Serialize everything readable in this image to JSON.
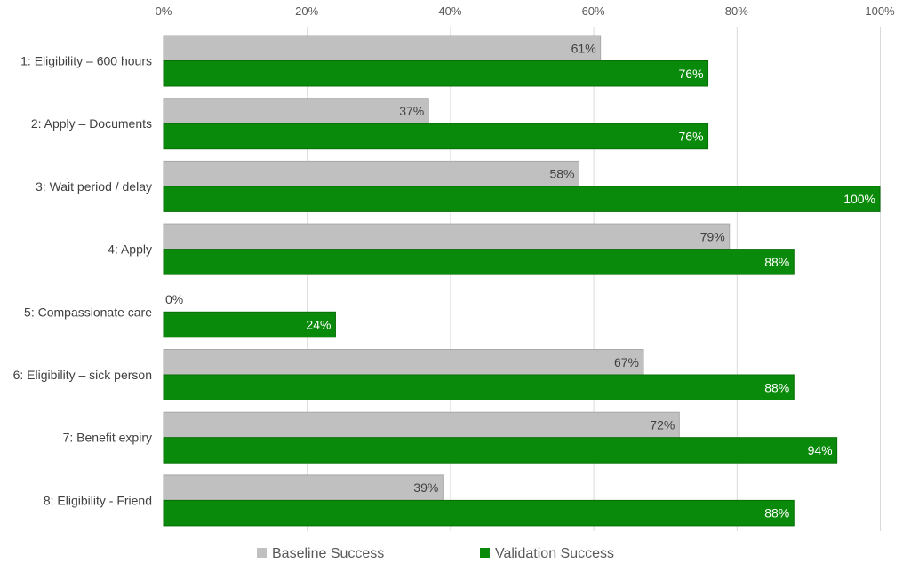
{
  "chart_data": {
    "type": "bar",
    "orientation": "horizontal",
    "categories": [
      "1: Eligibility – 600 hours",
      "2: Apply – Documents",
      "3: Wait period / delay",
      "4: Apply",
      "5: Compassionate care",
      "6: Eligibility – sick person",
      "7: Benefit expiry",
      "8: Eligibility - Friend"
    ],
    "series": [
      {
        "name": "Baseline Success",
        "color": "#c0c0c0",
        "label_color": "#404040",
        "values": [
          61,
          37,
          58,
          79,
          0,
          67,
          72,
          39
        ]
      },
      {
        "name": "Validation Success",
        "color": "#0a8a0a",
        "label_color": "#ffffff",
        "values": [
          76,
          76,
          100,
          88,
          24,
          88,
          94,
          88
        ]
      }
    ],
    "xlim": [
      0,
      100
    ],
    "x_ticks": [
      0,
      20,
      40,
      60,
      80,
      100
    ],
    "tick_format": "{v}%",
    "value_format": "{v}%",
    "axis_position": "top",
    "grid": true,
    "legend_position": "bottom",
    "title": "",
    "xlabel": "",
    "ylabel": ""
  }
}
